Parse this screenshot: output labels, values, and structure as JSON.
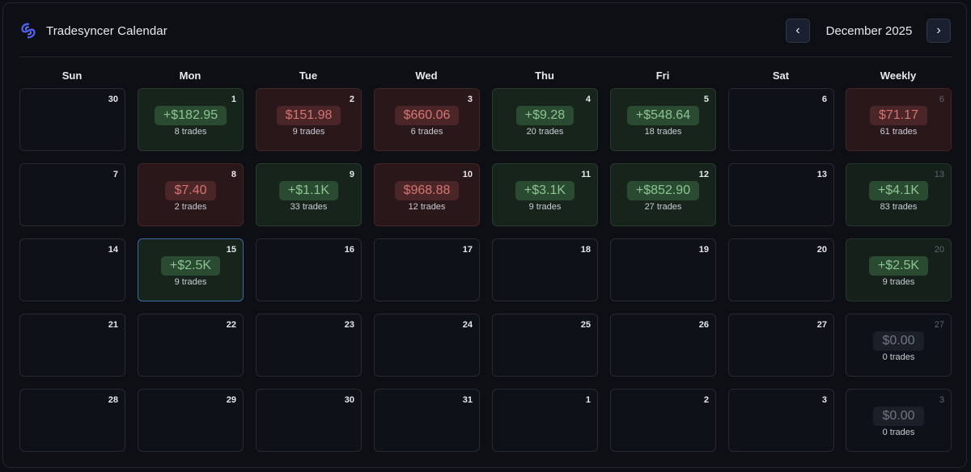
{
  "header": {
    "title": "Tradesyncer Calendar",
    "month": "December 2025",
    "prev_label": "‹",
    "next_label": "›",
    "logo_icon": "tradesyncer-logo-icon"
  },
  "colors": {
    "background": "#0d0f15",
    "profit": "#8ac58f",
    "loss": "#d87470",
    "neutral": "#6f7684",
    "accent": "#4b5ef0"
  },
  "weekdays": [
    "Sun",
    "Mon",
    "Tue",
    "Wed",
    "Thu",
    "Fri",
    "Sat",
    "Weekly"
  ],
  "weeks": [
    {
      "days": [
        {
          "date": "30",
          "pnl": "",
          "trades": "",
          "status": "empty"
        },
        {
          "date": "1",
          "pnl": "+$182.95",
          "trades": "8 trades",
          "status": "pos"
        },
        {
          "date": "2",
          "pnl": "$151.98",
          "trades": "9 trades",
          "status": "neg"
        },
        {
          "date": "3",
          "pnl": "$660.06",
          "trades": "6 trades",
          "status": "neg"
        },
        {
          "date": "4",
          "pnl": "+$9.28",
          "trades": "20 trades",
          "status": "pos"
        },
        {
          "date": "5",
          "pnl": "+$548.64",
          "trades": "18 trades",
          "status": "pos"
        },
        {
          "date": "6",
          "pnl": "",
          "trades": "",
          "status": "empty"
        }
      ],
      "weekly": {
        "date": "6",
        "pnl": "$71.17",
        "trades": "61 trades",
        "status": "neg"
      }
    },
    {
      "days": [
        {
          "date": "7",
          "pnl": "",
          "trades": "",
          "status": "empty"
        },
        {
          "date": "8",
          "pnl": "$7.40",
          "trades": "2 trades",
          "status": "neg"
        },
        {
          "date": "9",
          "pnl": "+$1.1K",
          "trades": "33 trades",
          "status": "pos"
        },
        {
          "date": "10",
          "pnl": "$968.88",
          "trades": "12 trades",
          "status": "neg"
        },
        {
          "date": "11",
          "pnl": "+$3.1K",
          "trades": "9 trades",
          "status": "pos"
        },
        {
          "date": "12",
          "pnl": "+$852.90",
          "trades": "27 trades",
          "status": "pos"
        },
        {
          "date": "13",
          "pnl": "",
          "trades": "",
          "status": "empty"
        }
      ],
      "weekly": {
        "date": "13",
        "pnl": "+$4.1K",
        "trades": "83 trades",
        "status": "pos"
      }
    },
    {
      "days": [
        {
          "date": "14",
          "pnl": "",
          "trades": "",
          "status": "empty"
        },
        {
          "date": "15",
          "pnl": "+$2.5K",
          "trades": "9 trades",
          "status": "pos",
          "today": true
        },
        {
          "date": "16",
          "pnl": "",
          "trades": "",
          "status": "empty"
        },
        {
          "date": "17",
          "pnl": "",
          "trades": "",
          "status": "empty"
        },
        {
          "date": "18",
          "pnl": "",
          "trades": "",
          "status": "empty"
        },
        {
          "date": "19",
          "pnl": "",
          "trades": "",
          "status": "empty"
        },
        {
          "date": "20",
          "pnl": "",
          "trades": "",
          "status": "empty"
        }
      ],
      "weekly": {
        "date": "20",
        "pnl": "+$2.5K",
        "trades": "9 trades",
        "status": "pos"
      }
    },
    {
      "days": [
        {
          "date": "21",
          "pnl": "",
          "trades": "",
          "status": "empty"
        },
        {
          "date": "22",
          "pnl": "",
          "trades": "",
          "status": "empty"
        },
        {
          "date": "23",
          "pnl": "",
          "trades": "",
          "status": "empty"
        },
        {
          "date": "24",
          "pnl": "",
          "trades": "",
          "status": "empty"
        },
        {
          "date": "25",
          "pnl": "",
          "trades": "",
          "status": "empty"
        },
        {
          "date": "26",
          "pnl": "",
          "trades": "",
          "status": "empty"
        },
        {
          "date": "27",
          "pnl": "",
          "trades": "",
          "status": "empty"
        }
      ],
      "weekly": {
        "date": "27",
        "pnl": "$0.00",
        "trades": "0 trades",
        "status": "zero"
      }
    },
    {
      "days": [
        {
          "date": "28",
          "pnl": "",
          "trades": "",
          "status": "empty"
        },
        {
          "date": "29",
          "pnl": "",
          "trades": "",
          "status": "empty"
        },
        {
          "date": "30",
          "pnl": "",
          "trades": "",
          "status": "empty"
        },
        {
          "date": "31",
          "pnl": "",
          "trades": "",
          "status": "empty"
        },
        {
          "date": "1",
          "pnl": "",
          "trades": "",
          "status": "empty"
        },
        {
          "date": "2",
          "pnl": "",
          "trades": "",
          "status": "empty"
        },
        {
          "date": "3",
          "pnl": "",
          "trades": "",
          "status": "empty"
        }
      ],
      "weekly": {
        "date": "3",
        "pnl": "$0.00",
        "trades": "0 trades",
        "status": "zero"
      }
    }
  ]
}
